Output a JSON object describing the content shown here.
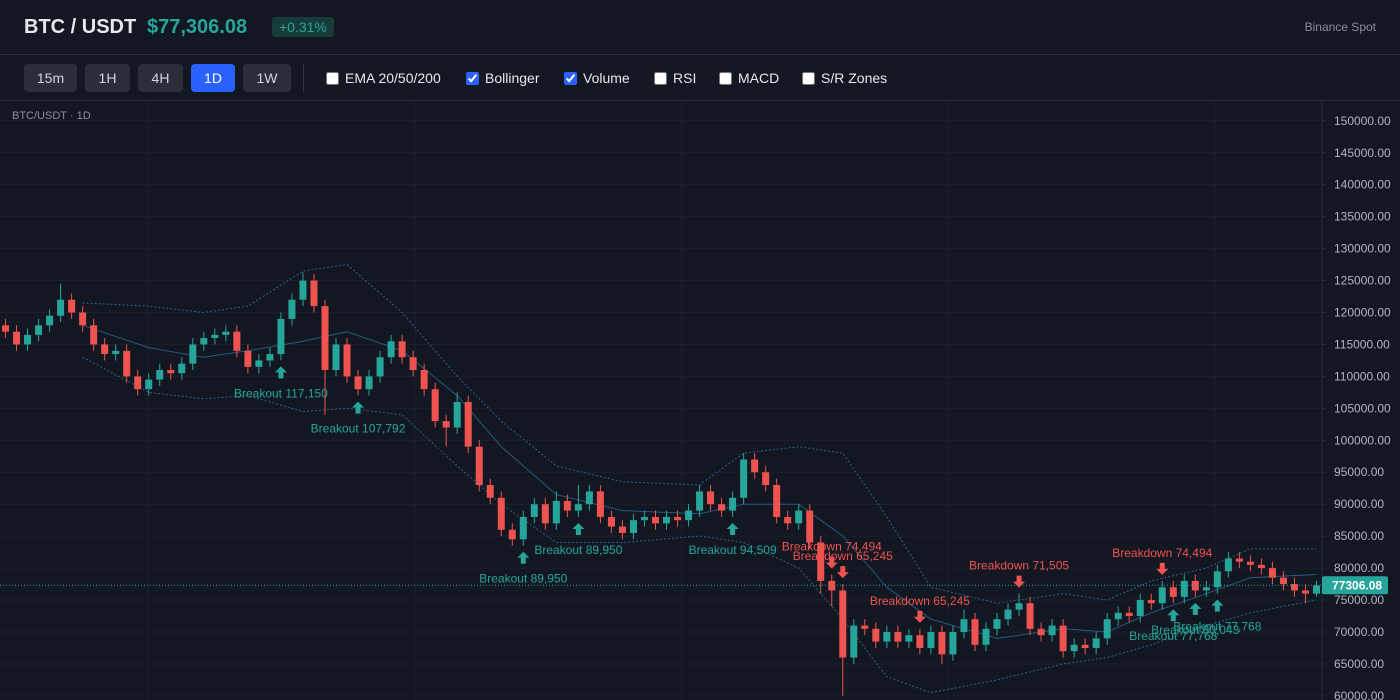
{
  "header": {
    "symbol": "BTC / USDT",
    "price": "$77,306.08",
    "change": "+0.31%",
    "exchange": "Binance Spot"
  },
  "toolbar": {
    "timeframes": [
      {
        "label": "15m",
        "active": false
      },
      {
        "label": "1H",
        "active": false
      },
      {
        "label": "4H",
        "active": false
      },
      {
        "label": "1D",
        "active": true
      },
      {
        "label": "1W",
        "active": false
      }
    ],
    "indicators": [
      {
        "label": "EMA 20/50/200",
        "checked": false
      },
      {
        "label": "Bollinger",
        "checked": true
      },
      {
        "label": "Volume",
        "checked": true
      },
      {
        "label": "RSI",
        "checked": false
      },
      {
        "label": "MACD",
        "checked": false
      },
      {
        "label": "S/R Zones",
        "checked": false
      }
    ]
  },
  "chart_data": {
    "type": "candlestick",
    "title": "BTC/USDT · 1D",
    "up_color": "#26a69a",
    "down_color": "#ef5350",
    "ylim": [
      59200,
      153100
    ],
    "yticks": [
      {
        "value": 60000,
        "label": "60000.00"
      },
      {
        "value": 65000,
        "label": "65000.00"
      },
      {
        "value": 70000,
        "label": "70000.00"
      },
      {
        "value": 75000,
        "label": "75000.00"
      },
      {
        "value": 80000,
        "label": "80000.00"
      },
      {
        "value": 85000,
        "label": "85000.00"
      },
      {
        "value": 90000,
        "label": "90000.00"
      },
      {
        "value": 95000,
        "label": "95000.00"
      },
      {
        "value": 100000,
        "label": "100000.00"
      },
      {
        "value": 105000,
        "label": "105000.00"
      },
      {
        "value": 110000,
        "label": "110000.00"
      },
      {
        "value": 115000,
        "label": "115000.00"
      },
      {
        "value": 120000,
        "label": "120000.00"
      },
      {
        "value": 125000,
        "label": "125000.00"
      },
      {
        "value": 130000,
        "label": "130000.00"
      },
      {
        "value": 135000,
        "label": "135000.00"
      },
      {
        "value": 140000,
        "label": "140000.00"
      },
      {
        "value": 145000,
        "label": "145000.00"
      },
      {
        "value": 150000,
        "label": "150000.00"
      }
    ],
    "grid": true,
    "open": [
      118000,
      117000,
      115000,
      116500,
      118000,
      119500,
      122000,
      120000,
      118000,
      115000,
      113500,
      114000,
      110000,
      108000,
      109500,
      111000,
      110500,
      112000,
      115000,
      116000,
      116500,
      117000,
      114000,
      111500,
      112500,
      113500,
      119000,
      122000,
      125000,
      121000,
      111000,
      115000,
      110000,
      108000,
      110000,
      113000,
      115500,
      113000,
      111000,
      108000,
      103000,
      102000,
      106000,
      99000,
      93000,
      91000,
      86000,
      84500,
      88000,
      90000,
      87000,
      90500,
      89000,
      90000,
      92000,
      88000,
      86500,
      85500,
      87500,
      88000,
      87000,
      88000,
      87500,
      89000,
      92000,
      90000,
      89000,
      91000,
      97000,
      95000,
      93000,
      88000,
      87000,
      89000,
      84000,
      78000,
      76500,
      66000,
      71000,
      70500,
      68500,
      70000,
      68500,
      69500,
      67500,
      70000,
      66500,
      70000,
      72000,
      68000,
      70500,
      72000,
      73500,
      74500,
      70500,
      69500,
      71000,
      67000,
      68000,
      67500,
      69000,
      72000,
      73000,
      72500,
      75000,
      74500,
      77000,
      75500,
      78000,
      76500,
      77000,
      79500,
      81500,
      81000,
      80500,
      80000,
      78500,
      77500,
      76500,
      76000
    ],
    "high": [
      119000,
      118000,
      117500,
      119000,
      120500,
      124500,
      123000,
      121000,
      119000,
      116000,
      115000,
      115000,
      111000,
      110500,
      112000,
      112000,
      113000,
      116000,
      117000,
      117500,
      118000,
      118000,
      115000,
      113500,
      114500,
      120000,
      123000,
      126300,
      126000,
      122000,
      116000,
      116000,
      111000,
      111000,
      114000,
      116500,
      116500,
      114000,
      112000,
      109000,
      104000,
      107500,
      107000,
      100000,
      94000,
      92000,
      87000,
      89000,
      91000,
      91000,
      92000,
      91500,
      93000,
      93000,
      93000,
      89000,
      87500,
      88500,
      89000,
      89000,
      89000,
      89000,
      90000,
      93000,
      93000,
      91000,
      92000,
      98000,
      98000,
      96000,
      94000,
      89000,
      90000,
      90000,
      85000,
      79000,
      77500,
      72000,
      72000,
      71500,
      71000,
      71000,
      70500,
      70500,
      71000,
      71000,
      71000,
      73500,
      73000,
      71500,
      73000,
      74500,
      76000,
      75500,
      71500,
      72000,
      72000,
      69000,
      69000,
      70000,
      73000,
      74000,
      74000,
      76000,
      76000,
      78000,
      78000,
      79000,
      79000,
      78000,
      80500,
      82500,
      82500,
      82000,
      81500,
      81000,
      79500,
      78500,
      77500,
      78000
    ],
    "low": [
      116000,
      114000,
      114000,
      115500,
      117000,
      118500,
      119000,
      117000,
      114000,
      112500,
      112500,
      109000,
      107000,
      107000,
      108500,
      109500,
      109500,
      111000,
      114000,
      115000,
      115500,
      113000,
      110500,
      110500,
      111500,
      112500,
      118000,
      121000,
      120000,
      104000,
      110000,
      109000,
      107000,
      107000,
      109000,
      112000,
      112000,
      110000,
      107000,
      102000,
      99000,
      101000,
      98000,
      92000,
      90000,
      85000,
      83500,
      83500,
      87000,
      86000,
      86000,
      88000,
      88000,
      89000,
      87000,
      85500,
      84500,
      84500,
      86500,
      86000,
      86000,
      86500,
      86500,
      88000,
      89000,
      88000,
      88000,
      90000,
      94000,
      92000,
      87000,
      86000,
      86000,
      83000,
      76000,
      74000,
      60000,
      65000,
      69500,
      67500,
      67500,
      67500,
      67500,
      66500,
      66500,
      65000,
      65500,
      69000,
      67000,
      67000,
      69500,
      71000,
      72500,
      69500,
      68500,
      68500,
      66000,
      66000,
      66500,
      66500,
      68000,
      71000,
      71500,
      71500,
      73500,
      73500,
      74500,
      74500,
      75500,
      75500,
      76000,
      78500,
      80000,
      79500,
      79000,
      77500,
      76500,
      75500,
      74500,
      75500
    ],
    "close": [
      117000,
      115000,
      116500,
      118000,
      119500,
      122000,
      120000,
      118000,
      115000,
      113500,
      114000,
      110000,
      108000,
      109500,
      111000,
      110500,
      112000,
      115000,
      116000,
      116500,
      117000,
      114000,
      111500,
      112500,
      113500,
      119000,
      122000,
      125000,
      121000,
      111000,
      115000,
      110000,
      108000,
      110000,
      113000,
      115500,
      113000,
      111000,
      108000,
      103000,
      102000,
      106000,
      99000,
      93000,
      91000,
      86000,
      84500,
      88000,
      90000,
      87000,
      90500,
      89000,
      90000,
      92000,
      88000,
      86500,
      85500,
      87500,
      88000,
      87000,
      88000,
      87500,
      89000,
      92000,
      90000,
      89000,
      91000,
      97000,
      95000,
      93000,
      88000,
      87000,
      89000,
      84000,
      78000,
      76500,
      66000,
      71000,
      70500,
      68500,
      70000,
      68500,
      69500,
      67500,
      70000,
      66500,
      70000,
      72000,
      68000,
      70500,
      72000,
      73500,
      74500,
      70500,
      69500,
      71000,
      67000,
      68000,
      67500,
      69000,
      72000,
      73000,
      72500,
      75000,
      74500,
      77000,
      75500,
      78000,
      76500,
      77000,
      79500,
      81500,
      81000,
      80500,
      80000,
      78500,
      77500,
      76500,
      76000,
      77306.08
    ],
    "bollinger": {
      "color": "#2b6a99",
      "x": [
        7,
        13,
        18,
        22,
        27,
        31,
        36,
        41,
        45,
        50,
        56,
        63,
        67,
        72,
        76,
        80,
        84,
        90,
        96,
        100,
        104,
        109,
        113,
        119
      ],
      "upper": [
        121500,
        121000,
        120000,
        121000,
        126500,
        127500,
        120000,
        110000,
        103000,
        96000,
        93500,
        93000,
        98000,
        99000,
        98000,
        88000,
        77000,
        74500,
        76000,
        75000,
        78000,
        80000,
        83000,
        83000
      ],
      "middle": [
        118000,
        114500,
        113000,
        114000,
        115500,
        117000,
        114000,
        107000,
        99000,
        91500,
        89000,
        88500,
        90000,
        90000,
        85000,
        77000,
        72000,
        69000,
        70500,
        70000,
        73000,
        76000,
        78500,
        79000
      ],
      "lower": [
        113000,
        107500,
        106500,
        107000,
        104500,
        105000,
        104000,
        96000,
        90000,
        84000,
        84000,
        85000,
        84000,
        80000,
        72000,
        63000,
        60500,
        62500,
        65000,
        66000,
        68000,
        71000,
        73000,
        75000
      ]
    },
    "breakouts": {
      "color": "#26a69a",
      "signals": [
        {
          "index": 25,
          "label": "Breakout 117,150"
        },
        {
          "index": 32,
          "label": "Breakout 107,792"
        },
        {
          "index": 47,
          "label": "Breakout 89,950"
        },
        {
          "index": 52,
          "label": "Breakout 89,950"
        },
        {
          "index": 66,
          "label": "Breakout 94,509"
        },
        {
          "index": 106,
          "label": "Breakout 77,768"
        },
        {
          "index": 108,
          "label": "Breakout 80,043"
        },
        {
          "index": 110,
          "label": "Breakout 77,768"
        }
      ]
    },
    "breakdowns": {
      "color": "#ef5350",
      "signals": [
        {
          "index": 75,
          "label": "Breakdown 74,494"
        },
        {
          "index": 76,
          "label": "Breakdown 65,245"
        },
        {
          "index": 83,
          "label": "Breakdown 65,245"
        },
        {
          "index": 92,
          "label": "Breakdown 71,505"
        },
        {
          "index": 105,
          "label": "Breakdown 74,494"
        }
      ]
    },
    "last_price": {
      "value": 77306.08,
      "label": "77306.08",
      "color": "#26a69a"
    }
  }
}
